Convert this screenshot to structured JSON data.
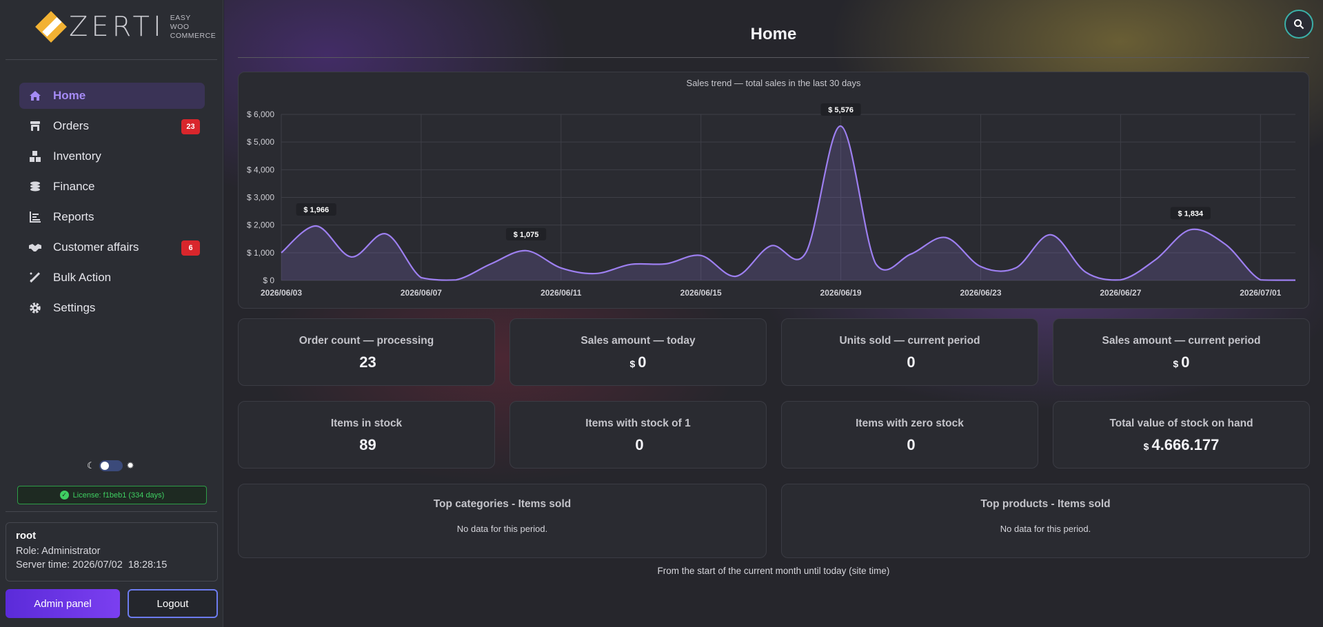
{
  "brand": {
    "word": "ZERTI",
    "sub1": "EASY",
    "sub2": "WOO",
    "sub3": "COMMERCE"
  },
  "nav": [
    {
      "label": "Home",
      "icon": "home-icon",
      "active": true
    },
    {
      "label": "Orders",
      "icon": "store-icon",
      "badge": "23"
    },
    {
      "label": "Inventory",
      "icon": "boxes-icon"
    },
    {
      "label": "Finance",
      "icon": "coins-icon"
    },
    {
      "label": "Reports",
      "icon": "bar-chart-icon"
    },
    {
      "label": "Customer affairs",
      "icon": "handshake-icon",
      "badge": "6"
    },
    {
      "label": "Bulk Action",
      "icon": "magic-wand-icon"
    },
    {
      "label": "Settings",
      "icon": "gear-icon"
    }
  ],
  "license": "License: f1beb1 (334 days)",
  "user": {
    "name": "root",
    "role": "Role: Administrator",
    "server_time": "Server time: 2026/07/02  18:28:15"
  },
  "buttons": {
    "admin": "Admin panel",
    "logout": "Logout"
  },
  "page": {
    "title": "Home",
    "footnote": "From the start of the current month until today (site time)"
  },
  "chart_data": {
    "type": "area",
    "title": "Sales trend — total sales in the last 30 days",
    "y_tick_labels": [
      "$ 0",
      "$ 1,000",
      "$ 2,000",
      "$ 3,000",
      "$ 4,000",
      "$ 5,000",
      "$ 6,000"
    ],
    "ylim": [
      0,
      6000
    ],
    "x_tick_labels": [
      "2026/06/03",
      "2026/06/07",
      "2026/06/11",
      "2026/06/15",
      "2026/06/19",
      "2026/06/23",
      "2026/06/27",
      "2026/07/01"
    ],
    "x": [
      "2026/06/03",
      "2026/06/04",
      "2026/06/05",
      "2026/06/06",
      "2026/06/07",
      "2026/06/08",
      "2026/06/09",
      "2026/06/10",
      "2026/06/11",
      "2026/06/12",
      "2026/06/13",
      "2026/06/14",
      "2026/06/15",
      "2026/06/16",
      "2026/06/17",
      "2026/06/18",
      "2026/06/19",
      "2026/06/20",
      "2026/06/21",
      "2026/06/22",
      "2026/06/23",
      "2026/06/24",
      "2026/06/25",
      "2026/06/26",
      "2026/06/27",
      "2026/06/28",
      "2026/06/29",
      "2026/06/30",
      "2026/07/01",
      "2026/07/02"
    ],
    "values": [
      1000,
      1966,
      850,
      1680,
      100,
      20,
      600,
      1075,
      450,
      250,
      580,
      600,
      900,
      150,
      1250,
      1000,
      5576,
      600,
      950,
      1550,
      500,
      450,
      1650,
      300,
      20,
      750,
      1834,
      1300,
      20,
      10
    ],
    "data_labels": [
      {
        "index": 1,
        "text": "$ 1,966"
      },
      {
        "index": 7,
        "text": "$ 1,075"
      },
      {
        "index": 16,
        "text": "$ 5,576"
      },
      {
        "index": 26,
        "text": "$ 1,834"
      }
    ],
    "grid": true,
    "color": "#9d7ff0"
  },
  "stats_row1": [
    {
      "label": "Order count — processing",
      "value": "23",
      "currency": ""
    },
    {
      "label": "Sales amount — today",
      "value": "0",
      "currency": "$"
    },
    {
      "label": "Units sold — current period",
      "value": "0",
      "currency": ""
    },
    {
      "label": "Sales amount — current period",
      "value": "0",
      "currency": "$"
    }
  ],
  "stats_row2": [
    {
      "label": "Items in stock",
      "value": "89",
      "currency": ""
    },
    {
      "label": "Items with stock of 1",
      "value": "0",
      "currency": ""
    },
    {
      "label": "Items with zero stock",
      "value": "0",
      "currency": ""
    },
    {
      "label": "Total value of stock on hand",
      "value": "4.666.177",
      "currency": "$"
    }
  ],
  "top_categories": {
    "title": "Top categories - Items sold",
    "empty": "No data for this period."
  },
  "top_products": {
    "title": "Top products - Items sold",
    "empty": "No data for this period."
  }
}
